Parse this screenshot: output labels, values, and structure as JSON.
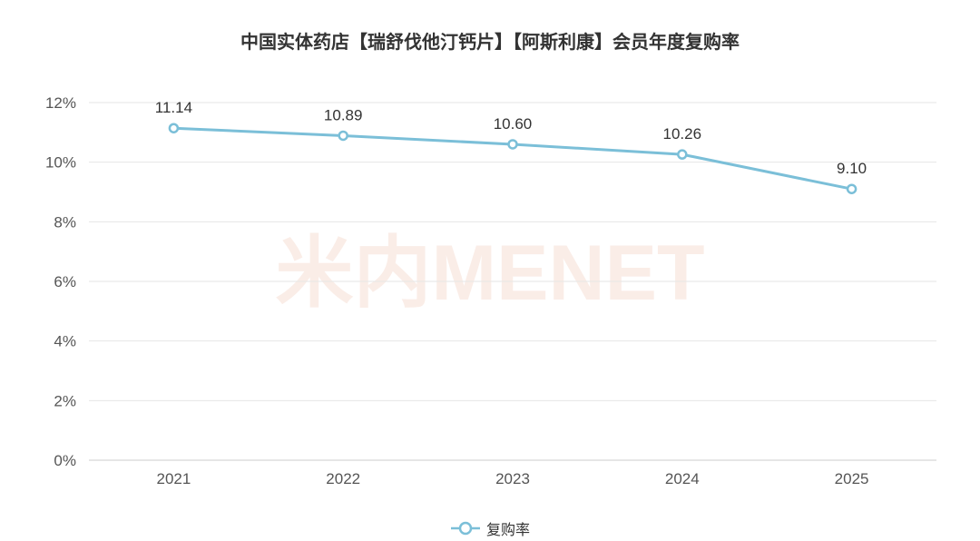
{
  "title": "中国实体药店【瑞舒伐他汀钙片】【阿斯利康】会员年度复购率",
  "watermark": "米内MENET",
  "colors": {
    "line": "#7bbfd8",
    "grid": "#e6e6e6",
    "axis_text": "#555555",
    "label_text": "#333333"
  },
  "legend": {
    "label": "复购率"
  },
  "chart_data": {
    "type": "line",
    "title": "中国实体药店【瑞舒伐他汀钙片】【阿斯利康】会员年度复购率",
    "categories": [
      "2021",
      "2022",
      "2023",
      "2024",
      "2025"
    ],
    "series": [
      {
        "name": "复购率",
        "values": [
          11.14,
          10.89,
          10.6,
          10.26,
          9.1
        ],
        "labels": [
          "11.14",
          "10.89",
          "10.60",
          "10.26",
          "9.10"
        ]
      }
    ],
    "y_ticks": [
      "0%",
      "2%",
      "4%",
      "6%",
      "8%",
      "10%",
      "12%"
    ],
    "ylim": [
      0,
      12
    ],
    "grid": true,
    "legend_position": "bottom"
  }
}
